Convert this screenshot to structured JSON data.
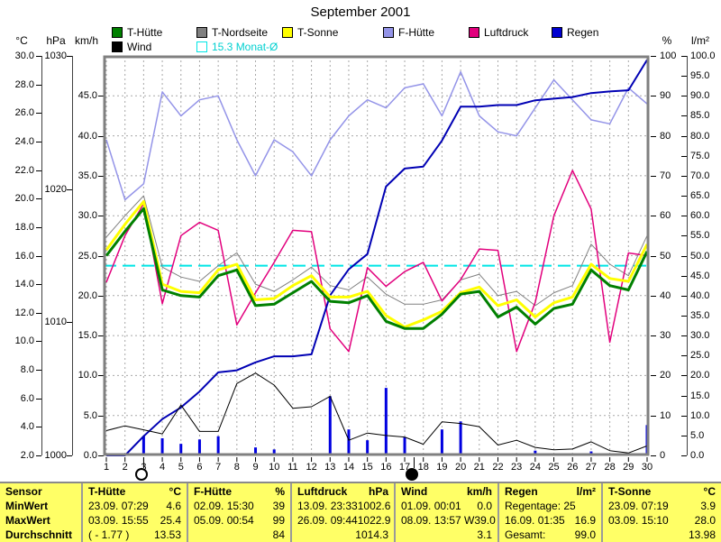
{
  "title": "September 2001",
  "legend": {
    "items": [
      {
        "label": "T-Hütte",
        "color": "#008000",
        "text": "#000000",
        "row": 1,
        "slot": 0
      },
      {
        "label": "T-Nordseite",
        "color": "#808080",
        "text": "#000000",
        "row": 1,
        "slot": 1
      },
      {
        "label": "T-Sonne",
        "color": "#ffff00",
        "text": "#000000",
        "row": 1,
        "slot": 2
      },
      {
        "label": "F-Hütte",
        "color": "#9494e8",
        "text": "#000000",
        "row": 1,
        "slot": 3
      },
      {
        "label": "Luftdruck",
        "color": "#e2007d",
        "text": "#000000",
        "row": 1,
        "slot": 4
      },
      {
        "label": "Regen",
        "color": "#0000d0",
        "text": "#000000",
        "row": 1,
        "slot": 5
      },
      {
        "label": "Wind",
        "color": "#000000",
        "text": "#000000",
        "row": 2,
        "slot": 0
      },
      {
        "label": "15.3 Monat-Ø",
        "color": "#ffffff",
        "border": "#00e5e5",
        "text": "#00d0d0",
        "row": 2,
        "slot": 1
      }
    ]
  },
  "axes": {
    "left": [
      {
        "unit": "°C",
        "labels": [
          "30.0",
          "28.0",
          "26.0",
          "24.0",
          "22.0",
          "20.0",
          "18.0",
          "16.0",
          "14.0",
          "12.0",
          "10.0",
          "8.0",
          "6.0",
          "4.0",
          "2.0"
        ]
      },
      {
        "unit": "hPa",
        "labels": [
          "1030",
          "1020",
          "1010",
          "1000"
        ]
      },
      {
        "unit": "km/h",
        "labels": [
          "45.0",
          "40.0",
          "35.0",
          "30.0",
          "25.0",
          "20.0",
          "15.0",
          "10.0",
          "5.0",
          "0.0"
        ]
      }
    ],
    "right": [
      {
        "unit": "%",
        "labels": [
          "100",
          "90",
          "80",
          "70",
          "60",
          "50",
          "40",
          "30",
          "20",
          "10",
          "0"
        ]
      },
      {
        "unit": "l/m²",
        "labels": [
          "100.0",
          "95.0",
          "90.0",
          "85.0",
          "80.0",
          "75.0",
          "70.0",
          "65.0",
          "60.0",
          "55.0",
          "50.0",
          "45.0",
          "40.0",
          "35.0",
          "30.0",
          "25.0",
          "20.0",
          "15.0",
          "10.0",
          "5.0",
          "0.0"
        ]
      }
    ],
    "x_labels": [
      "1",
      "2",
      "3",
      "4",
      "5",
      "6",
      "7",
      "8",
      "9",
      "10",
      "11",
      "12",
      "13",
      "14",
      "15",
      "16",
      "17",
      "18",
      "19",
      "20",
      "21",
      "22",
      "23",
      "24",
      "25",
      "26",
      "27",
      "28",
      "29",
      "30"
    ]
  },
  "chart_data": {
    "type": "line",
    "title": "September 2001",
    "x": [
      1,
      2,
      3,
      4,
      5,
      6,
      7,
      8,
      9,
      10,
      11,
      12,
      13,
      14,
      15,
      16,
      17,
      18,
      19,
      20,
      21,
      22,
      23,
      24,
      25,
      26,
      27,
      28,
      29,
      30
    ],
    "axis_ranges": {
      "temp_c": [
        2,
        30
      ],
      "pressure_hpa": [
        1000,
        1030
      ],
      "wind_kmh": [
        0,
        50
      ],
      "percent": [
        0,
        100
      ],
      "rain_lm2": [
        0,
        100
      ]
    },
    "grid": true,
    "legend_position": "top",
    "series": [
      {
        "name": "T-Hütte",
        "axis": "temp",
        "color": "#008000",
        "width": 3,
        "values": [
          16.0,
          17.7,
          19.3,
          13.6,
          13.2,
          13.1,
          14.6,
          15.0,
          12.5,
          12.6,
          13.4,
          14.2,
          12.8,
          12.7,
          13.2,
          11.4,
          10.9,
          10.9,
          11.9,
          13.3,
          13.5,
          11.7,
          12.4,
          11.2,
          12.3,
          12.6,
          15.0,
          13.9,
          13.6,
          16.3
        ]
      },
      {
        "name": "T-Nordseite",
        "axis": "temp",
        "color": "#808080",
        "width": 1,
        "values": [
          17.3,
          18.8,
          20.2,
          15.2,
          14.5,
          14.2,
          15.3,
          16.2,
          14.0,
          13.5,
          14.3,
          15.2,
          13.9,
          13.6,
          14.5,
          13.3,
          12.6,
          12.6,
          12.9,
          14.3,
          14.7,
          13.2,
          13.5,
          12.5,
          13.4,
          13.9,
          16.8,
          15.4,
          14.6,
          17.4
        ]
      },
      {
        "name": "T-Sonne",
        "axis": "temp",
        "color": "#ffff00",
        "width": 3,
        "values": [
          16.4,
          18.2,
          19.8,
          14.0,
          13.5,
          13.4,
          15.0,
          15.4,
          12.9,
          13.0,
          13.9,
          14.6,
          13.1,
          13.1,
          13.5,
          11.8,
          11.0,
          11.5,
          12.1,
          13.4,
          13.8,
          12.5,
          12.9,
          11.7,
          12.7,
          13.1,
          15.4,
          14.4,
          14.2,
          16.8
        ]
      },
      {
        "name": "F-Hütte",
        "axis": "pct",
        "color": "#9494e8",
        "width": 1.5,
        "values": [
          79,
          64,
          68,
          91,
          85,
          89,
          90,
          79,
          70,
          79,
          76,
          70,
          79,
          85,
          89,
          87,
          92,
          93,
          85,
          96,
          85,
          81,
          80,
          87,
          94,
          89,
          84,
          83,
          92,
          88
        ]
      },
      {
        "name": "Luftdruck",
        "axis": "hpa",
        "color": "#e2007d",
        "width": 1.5,
        "values": [
          1013.0,
          1016.5,
          1018.9,
          1011.4,
          1016.5,
          1017.5,
          1016.9,
          1009.8,
          1012.2,
          1014.5,
          1016.9,
          1016.8,
          1009.5,
          1007.8,
          1014.1,
          1012.7,
          1013.8,
          1014.5,
          1011.6,
          1013.2,
          1015.5,
          1015.4,
          1007.8,
          1011.5,
          1018.0,
          1021.4,
          1018.5,
          1008.5,
          1015.2,
          1015.0
        ]
      },
      {
        "name": "Wind",
        "axis": "kmh",
        "color": "#000000",
        "width": 1,
        "values": [
          3.1,
          3.7,
          3.2,
          2.7,
          6.3,
          3.0,
          3.0,
          9.0,
          10.3,
          8.8,
          5.9,
          6.1,
          7.4,
          1.9,
          2.8,
          2.5,
          2.3,
          1.4,
          4.2,
          4.0,
          3.6,
          1.3,
          1.9,
          1.0,
          0.7,
          0.8,
          1.7,
          0.6,
          0.3,
          1.2
        ]
      },
      {
        "name": "Regen kumuliert",
        "axis": "rain",
        "color": "#0000b4",
        "width": 2,
        "values": [
          0,
          0,
          4.8,
          9.1,
          12.0,
          16.0,
          20.8,
          21.3,
          23.3,
          24.8,
          24.8,
          25.3,
          40.1,
          46.6,
          50.4,
          67.3,
          71.8,
          72.3,
          78.8,
          87.3,
          87.3,
          87.7,
          87.7,
          88.9,
          89.3,
          89.7,
          90.7,
          91.1,
          91.4,
          99.0
        ]
      }
    ],
    "rain_bars": {
      "name": "Regen",
      "axis": "rain",
      "color": "#0000e0",
      "width": 3,
      "values": [
        0,
        0,
        4.8,
        4.3,
        2.9,
        4.0,
        4.8,
        0.5,
        2.0,
        1.5,
        0,
        0.5,
        14.8,
        6.5,
        3.8,
        16.9,
        4.5,
        0.5,
        6.5,
        8.5,
        0,
        0.4,
        0,
        1.2,
        0.4,
        0.4,
        1.0,
        0.4,
        0.3,
        7.6
      ]
    },
    "monthly_avg": {
      "value": 15.3,
      "axis": "temp",
      "label": "15.3 Monat-Ø",
      "color": "#00e5e5"
    },
    "moon_markers": [
      {
        "day": 3,
        "phase": "full-moon",
        "style": "open"
      },
      {
        "day": 17.5,
        "phase": "new-moon",
        "style": "filled"
      }
    ]
  },
  "table": {
    "row_labels": [
      "Sensor",
      "MinWert",
      "MaxWert",
      "Durchschnitt"
    ],
    "columns": [
      {
        "name": "T-Hütte",
        "unit": "°C",
        "min": [
          "23.09. 07:29",
          "4.6"
        ],
        "max": [
          "03.09. 15:55",
          "25.4"
        ],
        "avg": [
          "( - 1.77 )",
          "13.53"
        ]
      },
      {
        "name": "F-Hütte",
        "unit": "%",
        "min": [
          "02.09. 15:30",
          "39"
        ],
        "max": [
          "05.09. 00:54",
          "99"
        ],
        "avg": [
          "",
          "84"
        ]
      },
      {
        "name": "Luftdruck",
        "unit": "hPa",
        "min": [
          "13.09. 23:33",
          "1002.6"
        ],
        "max": [
          "26.09. 09:44",
          "1022.9"
        ],
        "avg": [
          "",
          "1014.3"
        ]
      },
      {
        "name": "Wind",
        "unit": "km/h",
        "min": [
          "01.09. 00:01",
          "0.0"
        ],
        "max": [
          "08.09. 13:57 W",
          "39.0"
        ],
        "avg": [
          "",
          "3.1"
        ]
      },
      {
        "name": "Regen",
        "unit": "l/m²",
        "min": [
          "Regentage: 25",
          ""
        ],
        "max": [
          "16.09. 01:35",
          "16.9"
        ],
        "avg": [
          "Gesamt:",
          "99.0"
        ]
      },
      {
        "name": "T-Sonne",
        "unit": "°C",
        "min": [
          "23.09. 07:19",
          "3.9"
        ],
        "max": [
          "03.09. 15:10",
          "28.0"
        ],
        "avg": [
          "",
          "13.98"
        ]
      }
    ]
  }
}
